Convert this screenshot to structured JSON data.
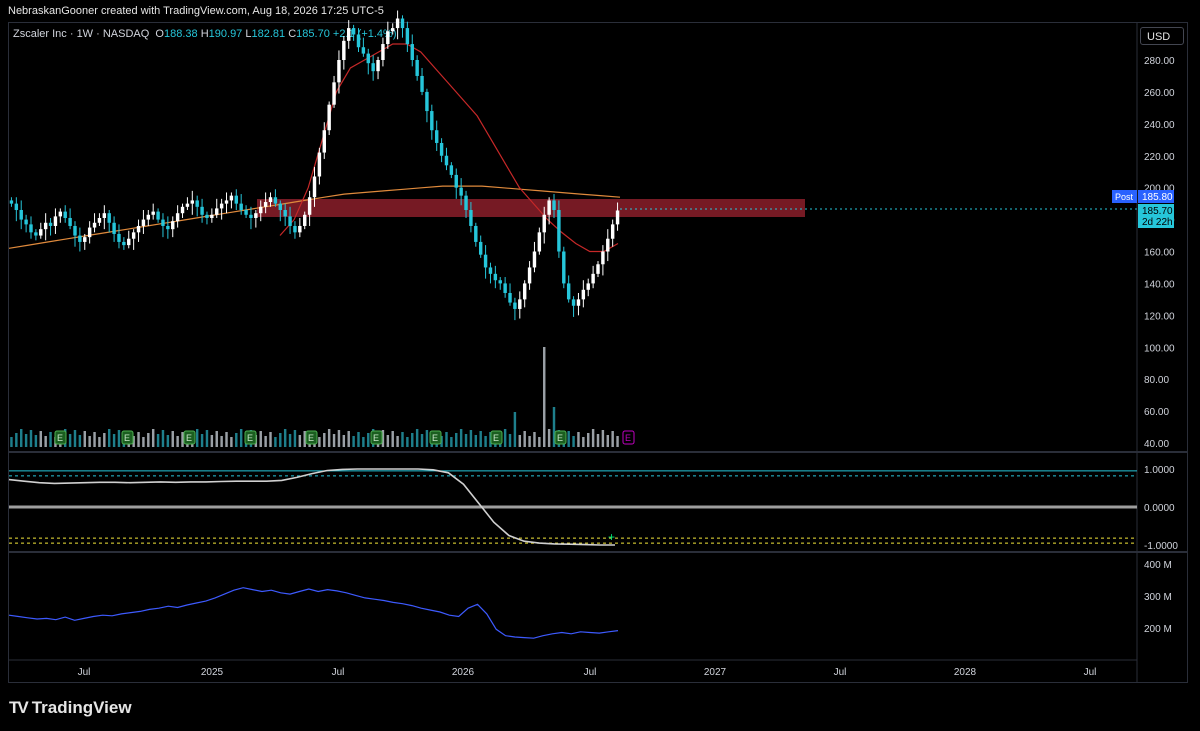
{
  "header": {
    "credit": "NebraskanGooner created with TradingView.com, Aug 18, 2026 17:25 UTC-5"
  },
  "symbol": {
    "name": "Zscaler Inc · 1W · NASDAQ",
    "open_label": "O",
    "open": "188.38",
    "high_label": "H",
    "high": "190.97",
    "low_label": "L",
    "low": "182.81",
    "close_label": "C",
    "close": "185.70",
    "change": "+2.1",
    "change_pct": "(+1.4%)"
  },
  "currency": "USD",
  "brand": {
    "logo": "TV",
    "name": "TradingView"
  },
  "colors": {
    "up": "#ffffff",
    "down": "#26c6da",
    "resistance_zone": "#8b1e2a",
    "ma_orange": "#e08a3c",
    "ma_red": "#c62828",
    "ma_green": "#2e7d32",
    "oscillator_line": "#d0d0d0",
    "oscillator_band": "#26c6da",
    "oscillator_yellow": "#f2e63a",
    "lower_line": "#3d5afe",
    "earnings_marker": "#1b5e20",
    "earnings_upcoming": "#c000c0"
  },
  "price_axis": {
    "ticks": [
      "280.00",
      "260.00",
      "240.00",
      "220.00",
      "200.00",
      "180.00",
      "160.00",
      "140.00",
      "120.00",
      "100.00",
      "80.00",
      "60.00",
      "40.00"
    ],
    "post_label": "Post",
    "post_value": "185.80",
    "last_value": "185.70",
    "countdown": "2d 22h"
  },
  "osc_axis": {
    "ticks": [
      "1.0000",
      "0.0000",
      "-1.0000"
    ]
  },
  "lower_axis": {
    "ticks": [
      "400 M",
      "300 M",
      "200 M"
    ]
  },
  "time_axis": {
    "labels": [
      "Jul",
      "2025",
      "Jul",
      "2026",
      "Jul",
      "2027",
      "Jul",
      "2028",
      "Jul"
    ]
  },
  "earnings_marker": "E",
  "chart_data": [
    {
      "type": "candlestick",
      "title": "Zscaler Inc · 1W · NASDAQ",
      "ylim": [
        40,
        300
      ],
      "closes": [
        190,
        186,
        180,
        177,
        172,
        170,
        174,
        178,
        176,
        182,
        185,
        181,
        176,
        170,
        166,
        169,
        175,
        178,
        181,
        184,
        178,
        171,
        166,
        164,
        168,
        172,
        176,
        180,
        183,
        185,
        180,
        176,
        174,
        179,
        184,
        188,
        190,
        192,
        188,
        183,
        181,
        183,
        187,
        190,
        192,
        195,
        190,
        186,
        183,
        181,
        184,
        188,
        191,
        194,
        190,
        186,
        182,
        176,
        172,
        176,
        183,
        194,
        207,
        222,
        236,
        252,
        266,
        280,
        292,
        300,
        296,
        288,
        284,
        278,
        273,
        280,
        290,
        298,
        300,
        306,
        300,
        290,
        280,
        270,
        260,
        248,
        236,
        228,
        220,
        214,
        208,
        200,
        195,
        186,
        176,
        166,
        158,
        150,
        146,
        142,
        140,
        134,
        128,
        124,
        130,
        140,
        150,
        160,
        172,
        183,
        192,
        186,
        160,
        140,
        130,
        126,
        130,
        136,
        140,
        146,
        152,
        160,
        168,
        177,
        185.7
      ]
    },
    {
      "type": "line",
      "series": [
        {
          "name": "",
          "color": "#e08a3c",
          "values": [
            162,
            164,
            166,
            168,
            170,
            172,
            174,
            176,
            178,
            180,
            182,
            184,
            186,
            188,
            190,
            192,
            194,
            196,
            197,
            198,
            199,
            200,
            201,
            201,
            201,
            200,
            199,
            198,
            197,
            196,
            195,
            194
          ]
        },
        {
          "name": "",
          "color": "#c62828",
          "values": [
            170,
            180,
            200,
            230,
            260,
            275,
            280,
            285,
            290,
            290,
            285,
            275,
            265,
            255,
            245,
            230,
            215,
            200,
            190,
            180,
            172,
            165,
            160,
            160,
            165
          ]
        }
      ]
    },
    {
      "type": "line",
      "title": "",
      "ylim": [
        -1.1,
        1.1
      ],
      "values": [
        0.72,
        0.68,
        0.64,
        0.62,
        0.63,
        0.64,
        0.65,
        0.65,
        0.64,
        0.65,
        0.66,
        0.65,
        0.66,
        0.66,
        0.67,
        0.68,
        0.68,
        0.68,
        0.7,
        0.78,
        0.88,
        0.96,
        0.99,
        1.0,
        1.0,
        1.0,
        1.0,
        1.0,
        0.98,
        0.9,
        0.6,
        0.1,
        -0.4,
        -0.75,
        -0.9,
        -0.95,
        -0.97,
        -0.98,
        -0.99,
        -1.0,
        -1.0
      ],
      "levels": [
        0.95,
        0.82,
        0,
        -0.82,
        -0.95
      ]
    },
    {
      "type": "line",
      "title": "",
      "ylim": [
        100,
        420
      ],
      "values": [
        240,
        236,
        232,
        228,
        230,
        226,
        234,
        224,
        230,
        236,
        240,
        238,
        244,
        248,
        252,
        258,
        262,
        268,
        264,
        272,
        278,
        284,
        294,
        306,
        318,
        326,
        320,
        314,
        318,
        310,
        306,
        314,
        322,
        314,
        320,
        316,
        310,
        302,
        294,
        290,
        286,
        280,
        276,
        270,
        262,
        256,
        250,
        240,
        236,
        262,
        274,
        244,
        196,
        176,
        172,
        170,
        168,
        176,
        182,
        186,
        182,
        188,
        186,
        184,
        188,
        192
      ]
    }
  ]
}
